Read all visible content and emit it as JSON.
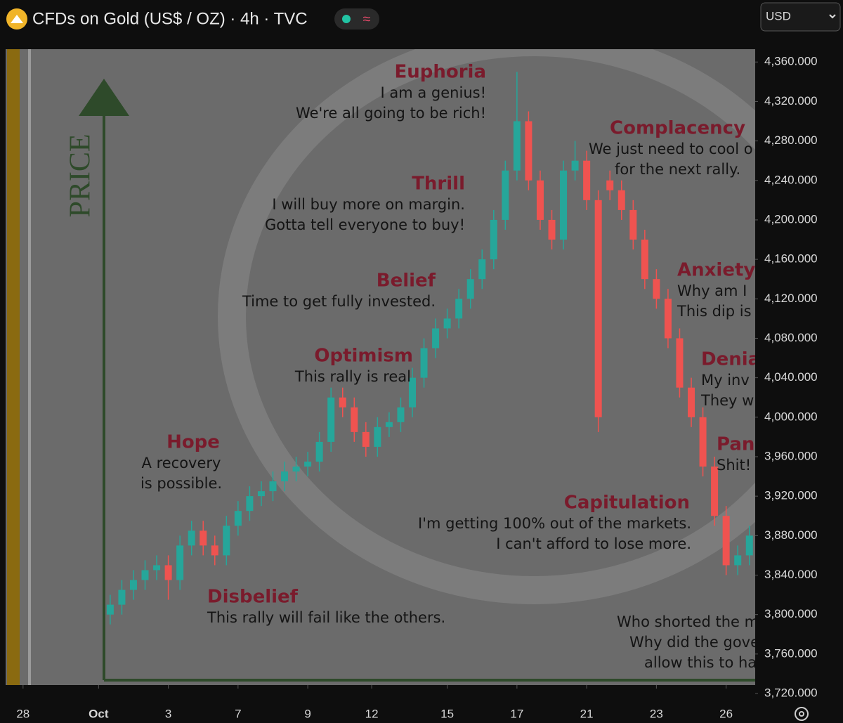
{
  "header": {
    "title": "CFDs on Gold (US$ / OZ) · 4h · TVC",
    "badge": "≈",
    "currency": "USD"
  },
  "overlay": {
    "price": "PRICE",
    "phases": [
      {
        "label": "Euphoria",
        "lines": [
          "I am a genius!",
          "We're all going to be rich!"
        ]
      },
      {
        "label": "Complacency",
        "lines": [
          "We just need to cool o",
          "for the next rally."
        ]
      },
      {
        "label": "Thrill",
        "lines": [
          "I will buy more on margin.",
          "Gotta tell everyone to buy!"
        ]
      },
      {
        "label": "Anxiety",
        "lines": [
          "Why am I",
          "This dip is"
        ]
      },
      {
        "label": "Belief",
        "lines": [
          "Time to get fully invested."
        ]
      },
      {
        "label": "Denia",
        "lines": [
          "My inv",
          "They w"
        ]
      },
      {
        "label": "Optimism",
        "lines": [
          "This rally is real"
        ]
      },
      {
        "label": "Pan",
        "lines": [
          "Shit!"
        ]
      },
      {
        "label": "Hope",
        "lines": [
          "A recovery",
          "is possible."
        ]
      },
      {
        "label": "Capitulation",
        "lines": [
          "I'm getting 100% out of the markets.",
          "I can't afford to lose more."
        ]
      },
      {
        "label": "Disbelief",
        "lines": [
          "This rally will fail like the others."
        ]
      },
      {
        "lines": [
          "Who shorted the m",
          "Why did the gove",
          "allow this to ha"
        ]
      }
    ]
  },
  "chart_data": {
    "type": "candlestick",
    "up_color": "#26a69a",
    "down_color": "#ef5350",
    "x": [
      18,
      20,
      22,
      24,
      26,
      28,
      30,
      32,
      34,
      36,
      38,
      40,
      42,
      44,
      46,
      48,
      50,
      52,
      54,
      56,
      58,
      60,
      62,
      64,
      66,
      68,
      70,
      72,
      74,
      76,
      78,
      80,
      82,
      84,
      86,
      88,
      90,
      92,
      94,
      96,
      98,
      100,
      102,
      104,
      106,
      108,
      110,
      112,
      114,
      116,
      118,
      120,
      122,
      124,
      126,
      128
    ],
    "open": [
      3800,
      3810,
      3825,
      3835,
      3845,
      3850,
      3835,
      3870,
      3885,
      3870,
      3860,
      3890,
      3905,
      3920,
      3925,
      3935,
      3945,
      3950,
      3955,
      3975,
      4020,
      4010,
      3985,
      3970,
      3990,
      3995,
      4010,
      4040,
      4070,
      4090,
      4100,
      4120,
      4140,
      4160,
      4200,
      4250,
      4300,
      4240,
      4200,
      4180,
      4250,
      4260,
      4220,
      4240,
      4230,
      4210,
      4180,
      4140,
      4120,
      4080,
      4030,
      4000,
      3950,
      3900,
      3850,
      3860
    ],
    "high": [
      3820,
      3835,
      3845,
      3855,
      3860,
      3860,
      3880,
      3895,
      3895,
      3880,
      3900,
      3915,
      3930,
      3935,
      3945,
      3955,
      3960,
      3965,
      3985,
      4030,
      4030,
      4020,
      3995,
      4000,
      4005,
      4020,
      4050,
      4080,
      4100,
      4110,
      4130,
      4150,
      4170,
      4210,
      4260,
      4350,
      4310,
      4250,
      4210,
      4260,
      4280,
      4270,
      4230,
      4250,
      4240,
      4220,
      4190,
      4150,
      4130,
      4090,
      4040,
      4010,
      3960,
      3910,
      3870,
      3890
    ],
    "low": [
      3790,
      3800,
      3815,
      3825,
      3835,
      3815,
      3825,
      3860,
      3860,
      3850,
      3850,
      3880,
      3895,
      3910,
      3915,
      3925,
      3935,
      3940,
      3945,
      3965,
      4000,
      3975,
      3960,
      3960,
      3980,
      3985,
      4000,
      4030,
      4060,
      4080,
      4090,
      4110,
      4130,
      4150,
      4190,
      4240,
      4230,
      4190,
      4170,
      4170,
      4240,
      4210,
      3985,
      4220,
      4200,
      4170,
      4130,
      4110,
      4070,
      4020,
      3990,
      3940,
      3890,
      3840,
      3840,
      3850
    ],
    "close": [
      3810,
      3825,
      3835,
      3845,
      3850,
      3835,
      3870,
      3885,
      3870,
      3860,
      3890,
      3905,
      3920,
      3925,
      3935,
      3945,
      3950,
      3955,
      3975,
      4020,
      4010,
      3985,
      3970,
      3990,
      3995,
      4010,
      4040,
      4070,
      4090,
      4100,
      4120,
      4140,
      4160,
      4200,
      4250,
      4300,
      4240,
      4200,
      4180,
      4250,
      4260,
      4220,
      4000,
      4230,
      4210,
      4180,
      4140,
      4120,
      4080,
      4030,
      4000,
      3950,
      3900,
      3850,
      3860,
      3880
    ],
    "xlim": [
      0,
      129
    ],
    "xticks": [
      {
        "value": 3,
        "label": "28"
      },
      {
        "value": 16,
        "label": "Oct"
      },
      {
        "value": 28,
        "label": "3"
      },
      {
        "value": 40,
        "label": "7"
      },
      {
        "value": 52,
        "label": "9"
      },
      {
        "value": 63,
        "label": "12"
      },
      {
        "value": 76,
        "label": "15"
      },
      {
        "value": 88,
        "label": "17"
      },
      {
        "value": 100,
        "label": "21"
      },
      {
        "value": 112,
        "label": "23"
      },
      {
        "value": 124,
        "label": "26"
      }
    ],
    "ylim": [
      3720,
      4373
    ],
    "yticks": [
      {
        "value": 3720,
        "label": "3,720.000"
      },
      {
        "value": 3760,
        "label": "3,760.000"
      },
      {
        "value": 3800,
        "label": "3,800.000"
      },
      {
        "value": 3840,
        "label": "3,840.000"
      },
      {
        "value": 3880,
        "label": "3,880.000"
      },
      {
        "value": 3920,
        "label": "3,920.000"
      },
      {
        "value": 3960,
        "label": "3,960.000"
      },
      {
        "value": 4000,
        "label": "4,000.000"
      },
      {
        "value": 4040,
        "label": "4,040.000"
      },
      {
        "value": 4080,
        "label": "4,080.000"
      },
      {
        "value": 4120,
        "label": "4,120.000"
      },
      {
        "value": 4160,
        "label": "4,160.000"
      },
      {
        "value": 4200,
        "label": "4,200.000"
      },
      {
        "value": 4240,
        "label": "4,240.000"
      },
      {
        "value": 4280,
        "label": "4,280.000"
      },
      {
        "value": 4320,
        "label": "4,320.000"
      },
      {
        "value": 4360,
        "label": "4,360.000"
      }
    ]
  }
}
